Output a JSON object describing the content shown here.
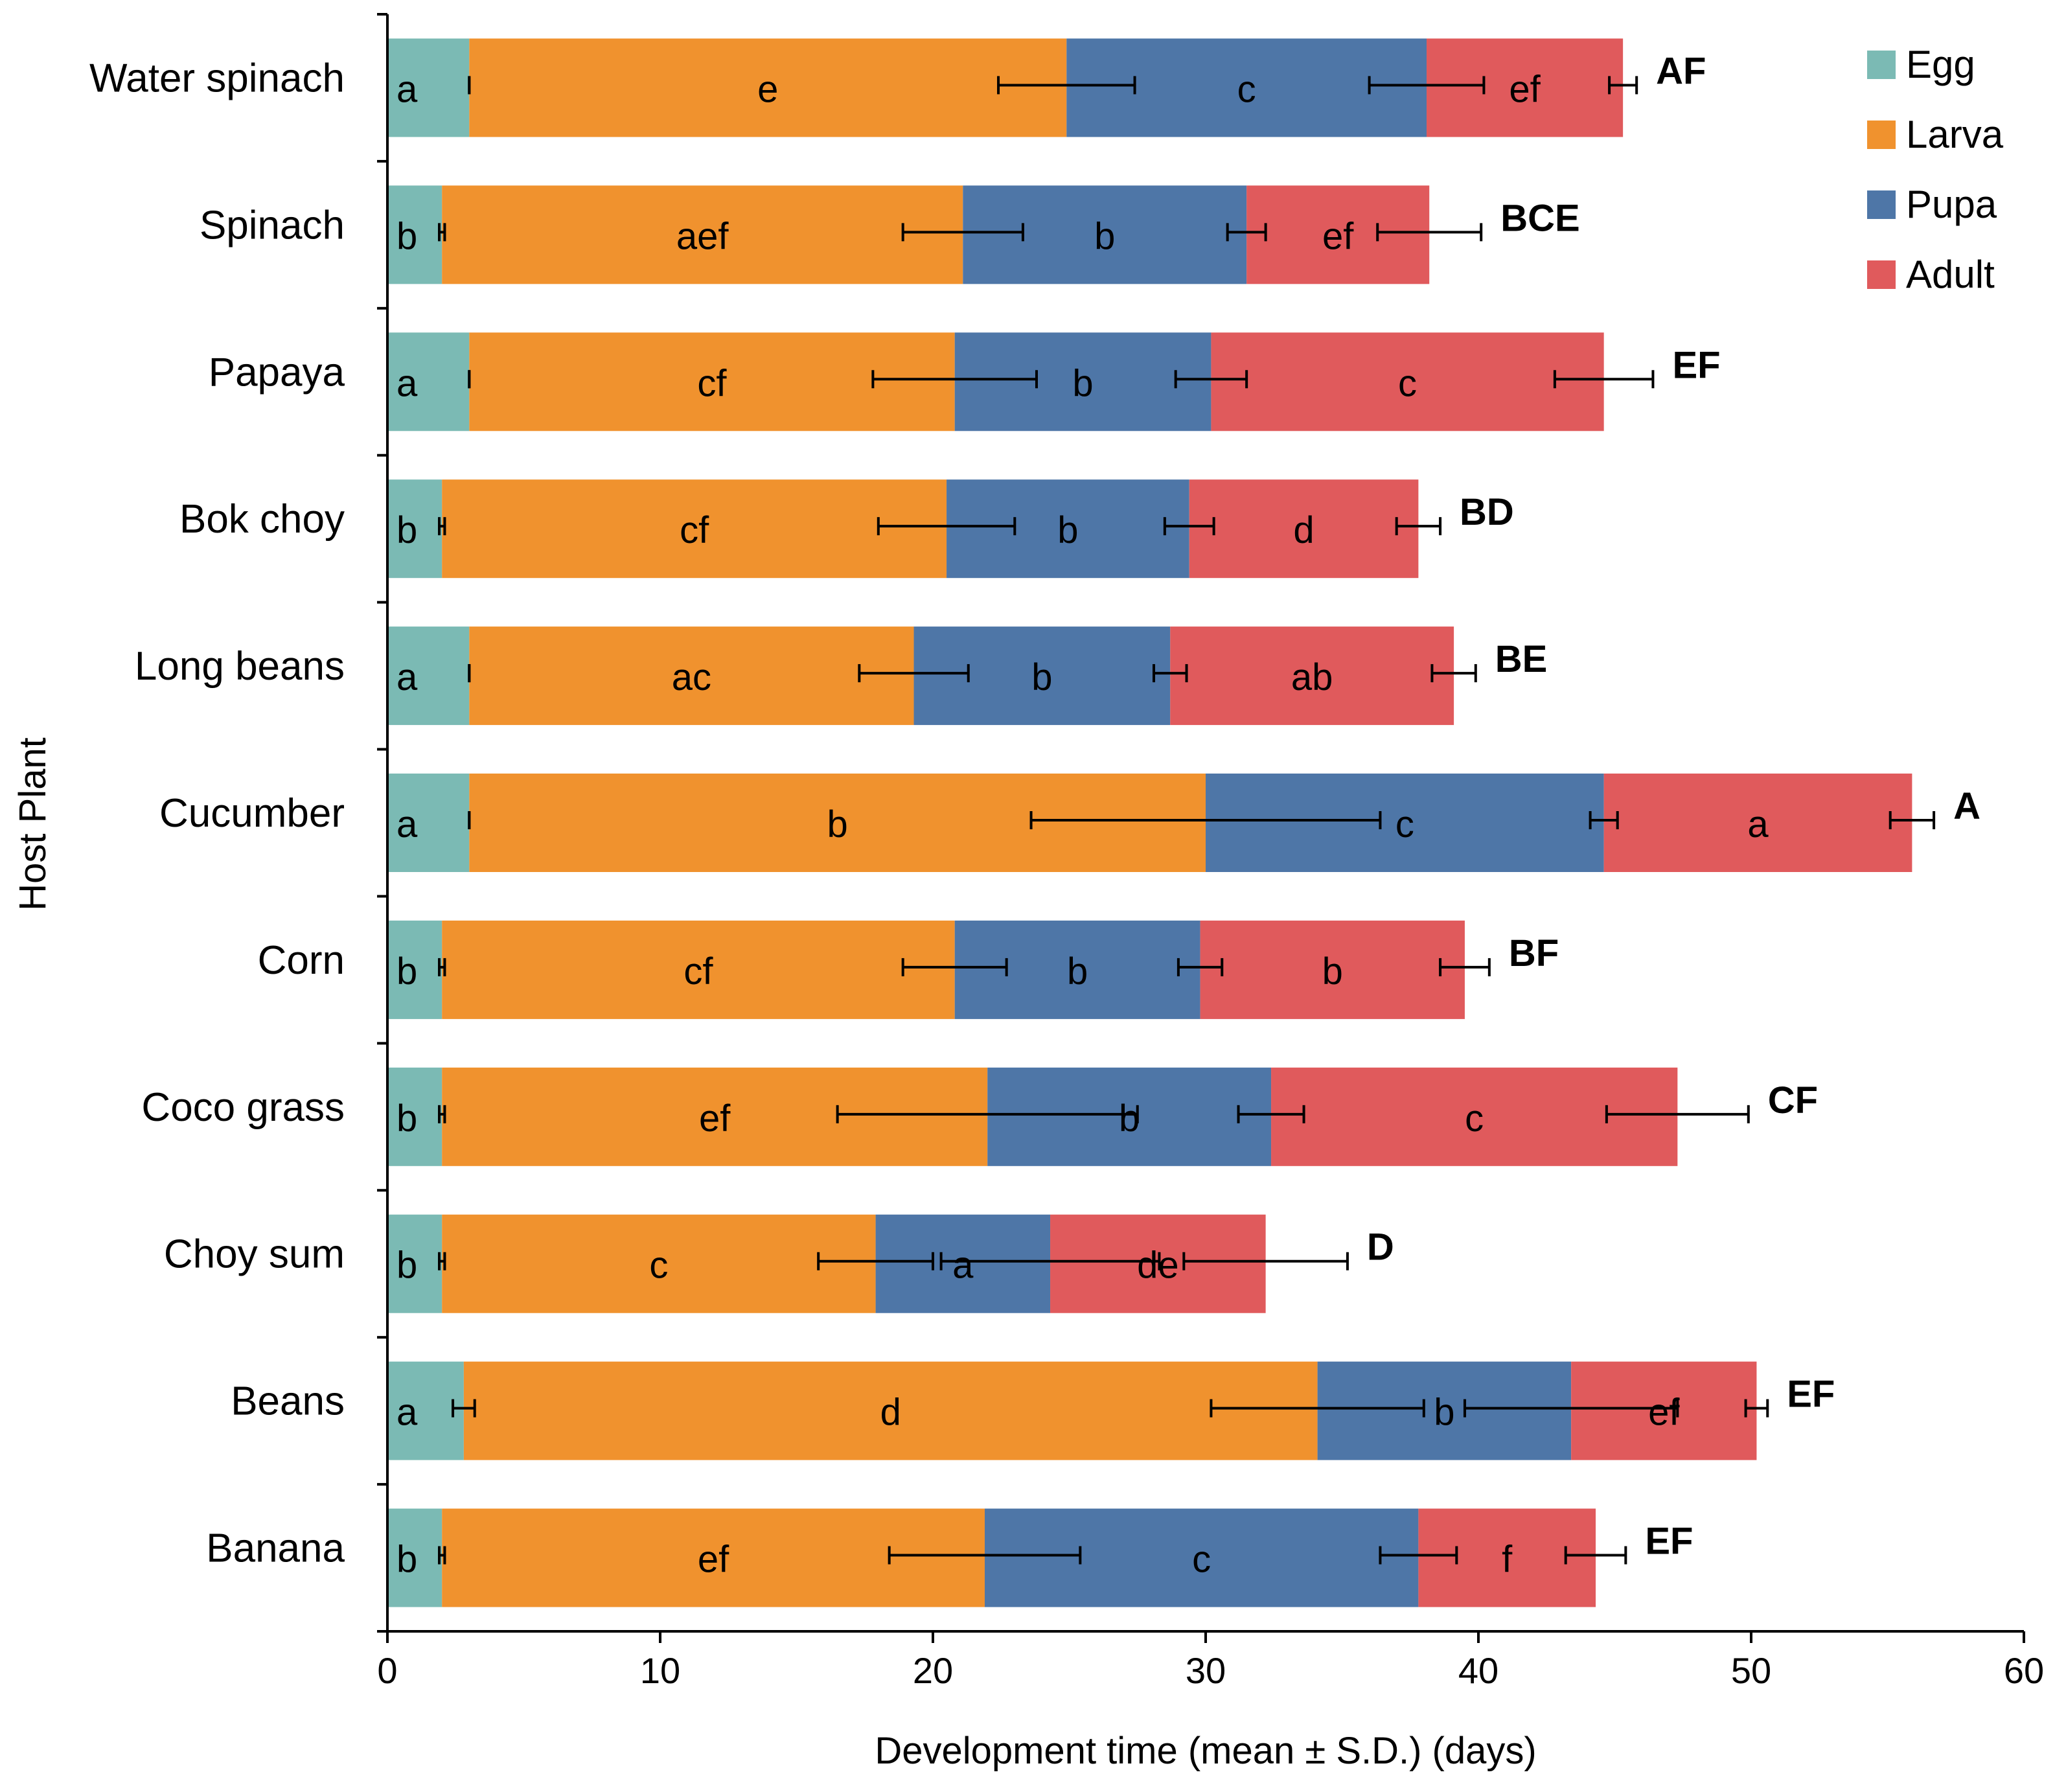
{
  "chart_data": {
    "type": "bar",
    "orientation": "horizontal",
    "stacked": true,
    "title": "",
    "xlabel": "Development time (mean ± S.D.) (days)",
    "ylabel": "Host Plant",
    "xlim": [
      0,
      60
    ],
    "xticks": [
      0,
      10,
      20,
      30,
      40,
      50,
      60
    ],
    "xtick_labels": [
      "0",
      "10",
      "20",
      "30",
      "40",
      "50",
      "60"
    ],
    "grid": false,
    "legend_position": "top-right",
    "categories": [
      "Water spinach",
      "Spinach",
      "Papaya",
      "Bok choy",
      "Long beans",
      "Cucumber",
      "Corn",
      "Coco grass",
      "Choy sum",
      "Beans",
      "Banana"
    ],
    "series": [
      {
        "name": "Egg",
        "color": "#7bbab4",
        "values": [
          3.0,
          2.0,
          3.0,
          2.0,
          3.0,
          3.0,
          2.0,
          2.0,
          2.0,
          2.8,
          2.0
        ],
        "sd": [
          0.0,
          0.1,
          0.0,
          0.1,
          0.0,
          0.0,
          0.1,
          0.1,
          0.1,
          0.4,
          0.1
        ],
        "letters": [
          "a",
          "b",
          "a",
          "b",
          "a",
          "a",
          "b",
          "b",
          "b",
          "a",
          "b"
        ]
      },
      {
        "name": "Larva",
        "color": "#f0922e",
        "values": [
          21.9,
          19.1,
          17.8,
          18.5,
          16.3,
          27.0,
          18.8,
          20.0,
          15.9,
          31.3,
          19.9
        ],
        "sd": [
          2.5,
          2.2,
          3.0,
          2.5,
          2.0,
          6.4,
          1.9,
          5.5,
          2.1,
          3.9,
          3.5
        ],
        "letters": [
          "e",
          "aef",
          "cf",
          "cf",
          "ac",
          "b",
          "cf",
          "ef",
          "c",
          "d",
          "ef"
        ]
      },
      {
        "name": "Pupa",
        "color": "#4e76a7",
        "values": [
          13.2,
          10.4,
          9.4,
          8.9,
          9.4,
          14.6,
          9.0,
          10.4,
          6.4,
          9.3,
          15.9
        ],
        "sd": [
          2.1,
          0.7,
          1.3,
          0.9,
          0.6,
          0.5,
          0.8,
          1.2,
          4.0,
          3.9,
          1.4
        ],
        "letters": [
          "c",
          "b",
          "b",
          "b",
          "b",
          "c",
          "b",
          "b",
          "a",
          "b",
          "c"
        ]
      },
      {
        "name": "Adult",
        "color": "#e05a5c",
        "values": [
          7.2,
          6.7,
          14.4,
          8.4,
          10.4,
          11.3,
          9.7,
          14.9,
          7.9,
          6.8,
          6.5
        ],
        "sd": [
          0.5,
          1.9,
          1.8,
          0.8,
          0.8,
          0.8,
          0.9,
          2.6,
          3.0,
          0.4,
          1.1
        ],
        "letters": [
          "ef",
          "ef",
          "c",
          "d",
          "ab",
          "a",
          "b",
          "c",
          "de",
          "ef",
          "f"
        ]
      }
    ],
    "group_letters": [
      "AF",
      "BCE",
      "EF",
      "BD",
      "BE",
      "A",
      "BF",
      "CF",
      "D",
      "EF",
      "EF"
    ]
  }
}
